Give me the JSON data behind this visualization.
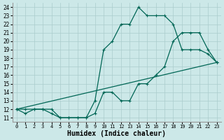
{
  "xlabel": "Humidex (Indice chaleur)",
  "xlim": [
    -0.5,
    23.5
  ],
  "ylim": [
    10.5,
    24.5
  ],
  "xticks": [
    0,
    1,
    2,
    3,
    4,
    5,
    6,
    7,
    8,
    9,
    10,
    11,
    12,
    13,
    14,
    15,
    16,
    17,
    18,
    19,
    20,
    21,
    22,
    23
  ],
  "yticks": [
    11,
    12,
    13,
    14,
    15,
    16,
    17,
    18,
    19,
    20,
    21,
    22,
    23,
    24
  ],
  "bg_color": "#cce8e8",
  "grid_color": "#aacccc",
  "line_color": "#006655",
  "line1_x": [
    0,
    1,
    2,
    3,
    4,
    5,
    6,
    7,
    8,
    9,
    10,
    11,
    12,
    13,
    14,
    15,
    16,
    17,
    18,
    19,
    20,
    21,
    22,
    23
  ],
  "line1_y": [
    12,
    12,
    12,
    12,
    12,
    11,
    11,
    11,
    11,
    13,
    19,
    20,
    22,
    22,
    24,
    23,
    23,
    23,
    22,
    19,
    19,
    19,
    18.5,
    17.5
  ],
  "line2_x": [
    0,
    1,
    2,
    3,
    4,
    5,
    6,
    7,
    8,
    9,
    10,
    11,
    12,
    13,
    14,
    15,
    16,
    17,
    18,
    19,
    20,
    21,
    22,
    23
  ],
  "line2_y": [
    12,
    11.5,
    12,
    12,
    11.5,
    11,
    11,
    11,
    11,
    11.5,
    14,
    14,
    13,
    13,
    15,
    15,
    16,
    17,
    20,
    21,
    21,
    21,
    19,
    17.5
  ],
  "line3_x": [
    0,
    23
  ],
  "line3_y": [
    12,
    17.5
  ],
  "fontsize_xlabel": 7,
  "tick_fontsize": 6
}
